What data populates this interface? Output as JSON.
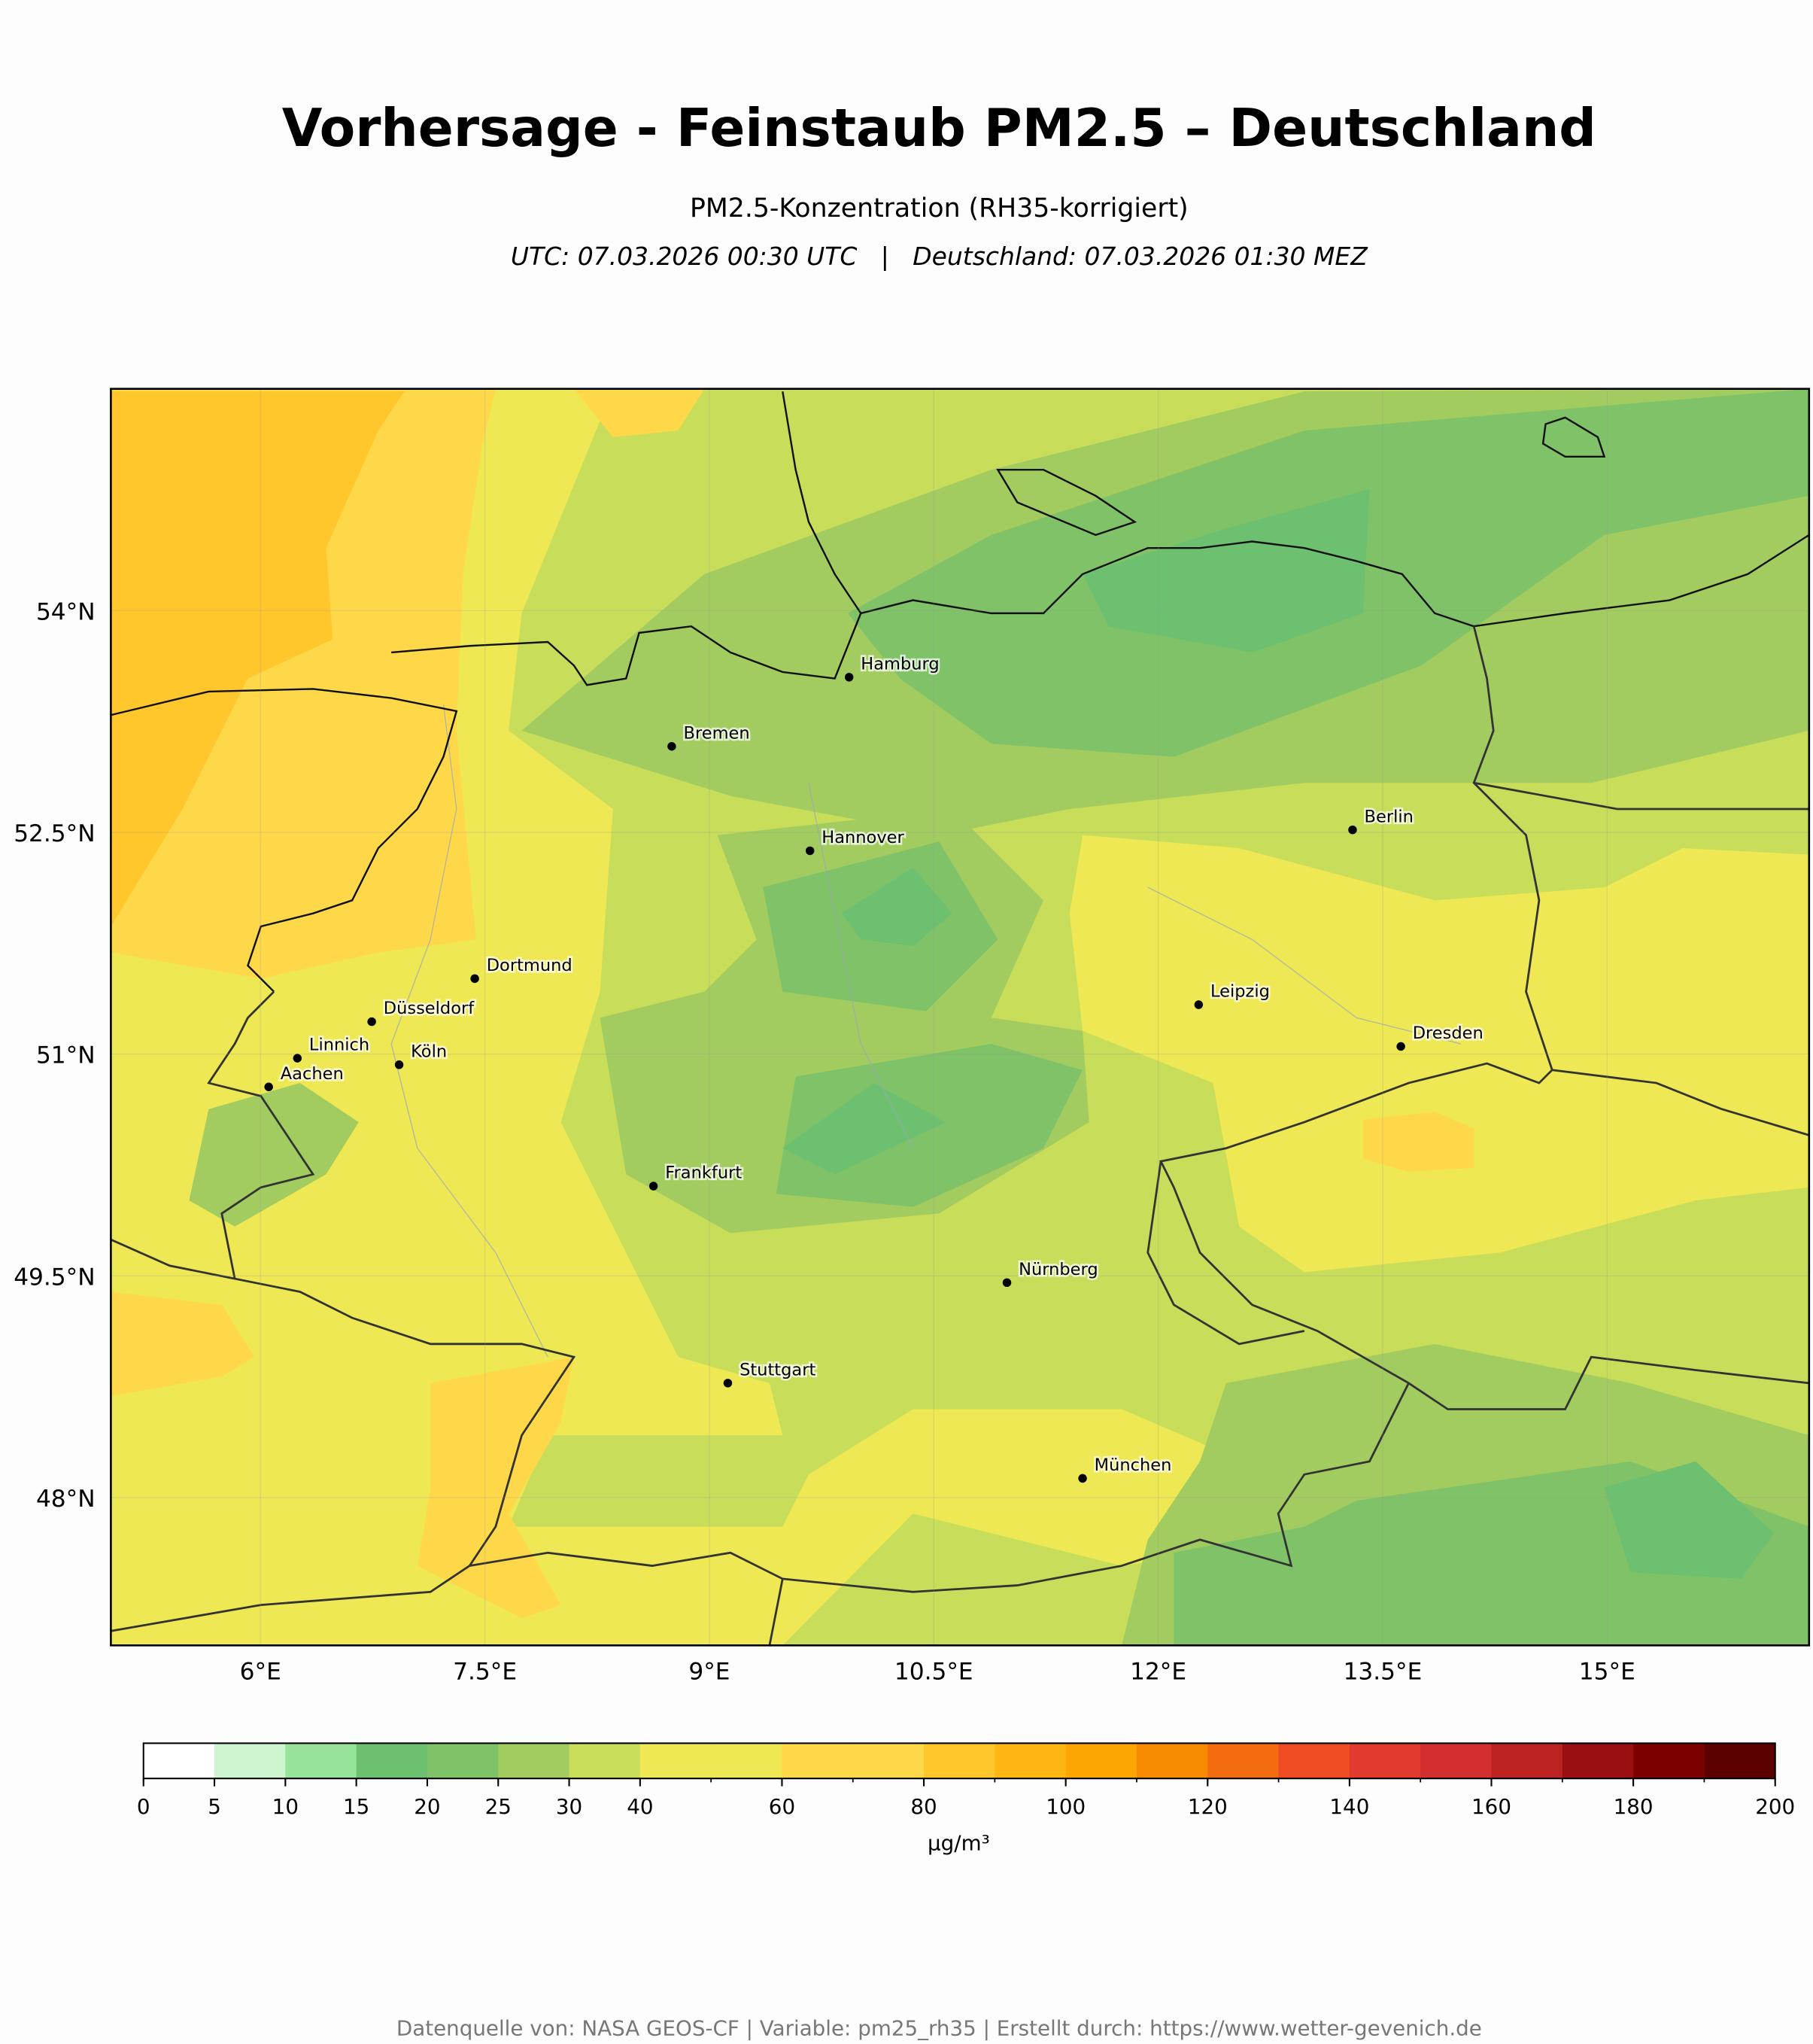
{
  "title": "Vorhersage - Feinstaub PM2.5 – Deutschland",
  "subtitle": "PM2.5-Konzentration (RH35-korrigiert)",
  "timestamp": "UTC: 07.03.2026 00:30 UTC   |   Deutschland: 07.03.2026 01:30 MEZ",
  "map": {
    "xlim": [
      5,
      16.35
    ],
    "ylim": [
      47,
      55.5
    ],
    "xticks": [
      {
        "value": 6,
        "label": "6°E"
      },
      {
        "value": 7.5,
        "label": "7.5°E"
      },
      {
        "value": 9,
        "label": "9°E"
      },
      {
        "value": 10.5,
        "label": "10.5°E"
      },
      {
        "value": 12,
        "label": "12°E"
      },
      {
        "value": 13.5,
        "label": "13.5°E"
      },
      {
        "value": 15,
        "label": "15°E"
      }
    ],
    "yticks": [
      {
        "value": 48,
        "label": "48°N"
      },
      {
        "value": 49.5,
        "label": "49.5°N"
      },
      {
        "value": 51,
        "label": "51°N"
      },
      {
        "value": 52.5,
        "label": "52.5°N"
      },
      {
        "value": 54,
        "label": "54°N"
      }
    ],
    "cities": [
      "Hamburg",
      "Bremen",
      "Berlin",
      "Hannover",
      "Dortmund",
      "Düsseldorf",
      "Leipzig",
      "Linnich",
      "Köln",
      "Dresden",
      "Aachen",
      "Frankfurt",
      "Nürnberg",
      "Stuttgart",
      "München"
    ]
  },
  "colorbar": {
    "boundaries": [
      0,
      5,
      10,
      15,
      20,
      25,
      30,
      40,
      50,
      60,
      70,
      80,
      90,
      100,
      110,
      120,
      130,
      140,
      150,
      160,
      170,
      180,
      190,
      200
    ],
    "colors": [
      "#ffffff",
      "#ccf5d0",
      "#98e39a",
      "#6cc070",
      "#80c268",
      "#a3cc60",
      "#c8dd5a",
      "#ede853",
      "#ede853",
      "#ffd84a",
      "#ffd84a",
      "#ffc72c",
      "#fdb612",
      "#fda500",
      "#f68a00",
      "#f46c10",
      "#ef4c23",
      "#e23a2f",
      "#d42f2f",
      "#bb2222",
      "#9a0f10",
      "#7d0000",
      "#5c0000"
    ],
    "ticks": [
      0,
      5,
      10,
      15,
      20,
      25,
      30,
      40,
      60,
      80,
      100,
      120,
      140,
      160,
      180,
      200
    ],
    "unit": "µg/m³"
  },
  "footer": "Datenquelle von: NASA GEOS-CF | Variable: pm25_rh35 | Erstellt durch: https://www.wetter-gevenich.de"
}
